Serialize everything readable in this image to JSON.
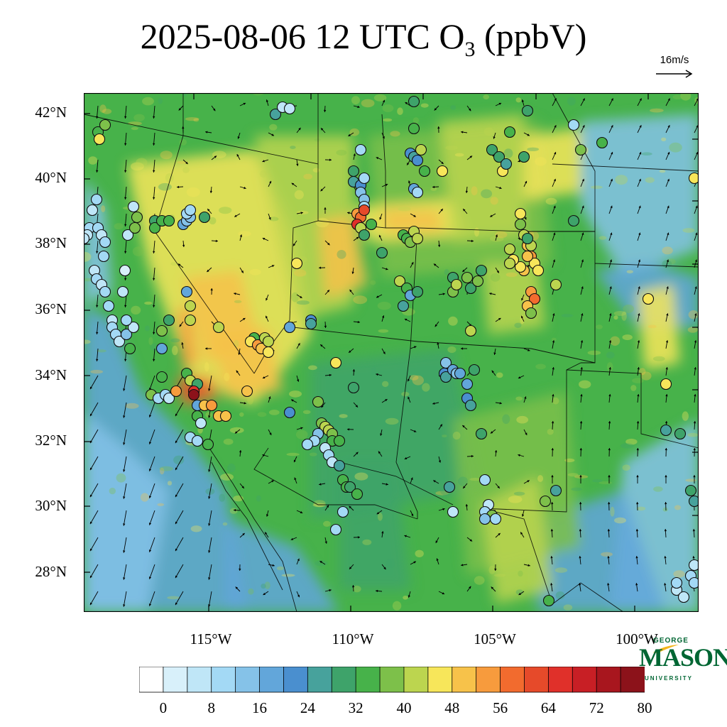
{
  "title": {
    "date": "2025-08-06",
    "hour": "12 UTC",
    "species_main": "O",
    "species_sub": "3",
    "units": "(ppbV)"
  },
  "wind_reference": {
    "label": "16m/s"
  },
  "latitude_labels": [
    "42°N",
    "40°N",
    "38°N",
    "36°N",
    "34°N",
    "32°N",
    "30°N",
    "28°N"
  ],
  "longitude_labels": [
    "115°W",
    "110°W",
    "105°W",
    "100°W"
  ],
  "colorbar": {
    "labels": [
      "0",
      "8",
      "16",
      "24",
      "32",
      "40",
      "48",
      "56",
      "64",
      "72",
      "80"
    ],
    "bin_edges": [
      0,
      4,
      8,
      12,
      16,
      20,
      24,
      28,
      32,
      36,
      40,
      44,
      48,
      52,
      56,
      60,
      64,
      68,
      72,
      76,
      80,
      84
    ],
    "colors": [
      "#ffffff",
      "#d8f0fa",
      "#bfe6f7",
      "#a3d9f5",
      "#85c2e8",
      "#62a6da",
      "#4a8fcf",
      "#47a29c",
      "#3ea36a",
      "#47b24a",
      "#7dc04a",
      "#bcd54f",
      "#f7e65a",
      "#f7c24a",
      "#f79b3d",
      "#f26b2e",
      "#e64a2a",
      "#e0302a",
      "#c81f25",
      "#a8161e",
      "#8c121a"
    ]
  },
  "logo": {
    "line1": "GEORGE",
    "line2": "MASON",
    "line3": "UNIVERSITY"
  },
  "colors": {
    "accent": "#006633",
    "logo_gold": "#f2b51c"
  }
}
